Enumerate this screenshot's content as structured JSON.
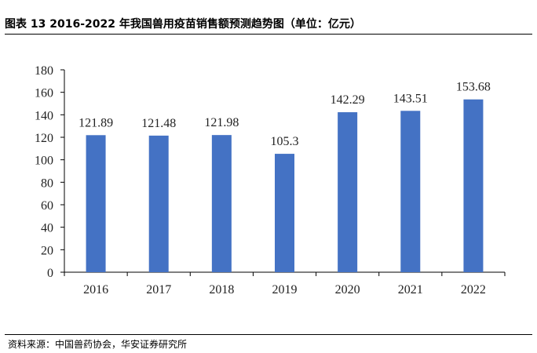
{
  "title": "图表 13 2016-2022 年我国兽用疫苗销售额预测趋势图（单位：亿元）",
  "source": "资料来源：中国兽药协会，华安证券研究所",
  "colors": {
    "bar": "#4472C4",
    "axis": "#000000",
    "text": "#222222"
  },
  "chart_data": {
    "type": "bar",
    "title": "",
    "xlabel": "",
    "ylabel": "",
    "categories": [
      "2016",
      "2017",
      "2018",
      "2019",
      "2020",
      "2021",
      "2022"
    ],
    "values": [
      121.89,
      121.48,
      121.98,
      105.3,
      142.29,
      143.51,
      153.68
    ],
    "value_labels": [
      "121.89",
      "121.48",
      "121.98",
      "105.3",
      "142.29",
      "143.51",
      "153.68"
    ],
    "ylim": [
      0,
      180
    ],
    "yticks": [
      0,
      20,
      40,
      60,
      80,
      100,
      120,
      140,
      160,
      180
    ],
    "grid": false,
    "legend": "none"
  }
}
